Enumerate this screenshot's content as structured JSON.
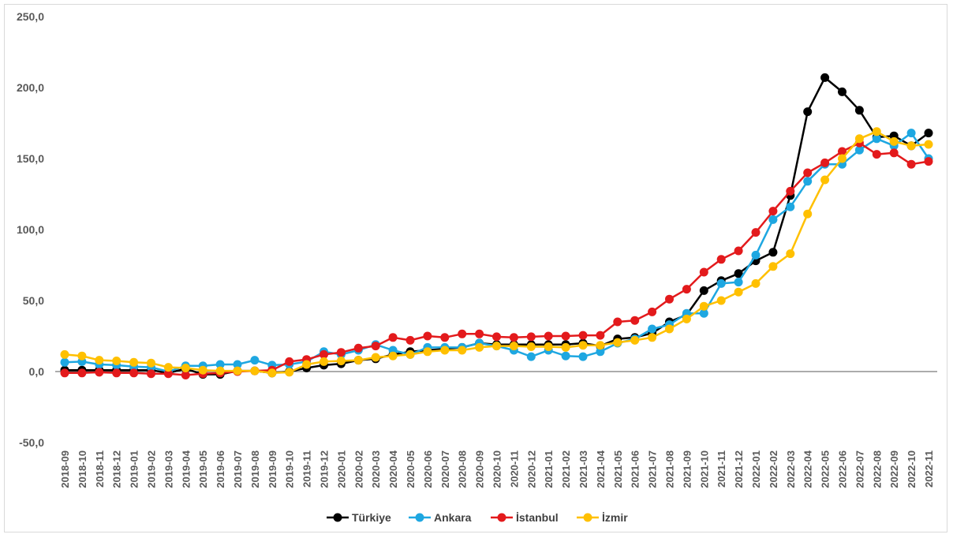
{
  "chart_data": {
    "type": "line",
    "title": "",
    "xlabel": "",
    "ylabel": "",
    "ylim": [
      -50,
      250
    ],
    "yticks": [
      -50,
      0,
      50,
      100,
      150,
      200,
      250
    ],
    "ytick_labels": [
      "-50,0",
      "0,0",
      "50,0",
      "100,0",
      "150,0",
      "200,0",
      "250,0"
    ],
    "grid": false,
    "legend_position": "bottom",
    "categories": [
      "2018-09",
      "2018-10",
      "2018-11",
      "2018-12",
      "2019-01",
      "2019-02",
      "2019-03",
      "2019-04",
      "2019-05",
      "2019-06",
      "2019-07",
      "2019-08",
      "2019-09",
      "2019-10",
      "2019-11",
      "2019-12",
      "2020-01",
      "2020-02",
      "2020-03",
      "2020-04",
      "2020-05",
      "2020-06",
      "2020-07",
      "2020-08",
      "2020-09",
      "2020-10",
      "2020-11",
      "2020-12",
      "2021-01",
      "2021-02",
      "2021-03",
      "2021-04",
      "2021-05",
      "2021-06",
      "2021-07",
      "2021-08",
      "2021-09",
      "2021-10",
      "2021-11",
      "2021-12",
      "2022-01",
      "2022-02",
      "2022-03",
      "2022-04",
      "2022-05",
      "2022-06",
      "2022-07",
      "2022-08",
      "2022-09",
      "2022-10",
      "2022-11"
    ],
    "series": [
      {
        "name": "Türkiye",
        "color": "#000000",
        "values": [
          1.0,
          1.0,
          1.0,
          1.0,
          1.0,
          1.0,
          -1.0,
          2.0,
          -2.0,
          -2.0,
          0.5,
          0.5,
          -1.0,
          0.0,
          2.5,
          4.5,
          5.5,
          8.0,
          9.0,
          12.0,
          14.0,
          15.0,
          16.0,
          17.0,
          20.0,
          19.0,
          19.0,
          19.0,
          19.0,
          19.0,
          20.0,
          18.0,
          23.0,
          24.0,
          27.0,
          35.0,
          40.0,
          57.0,
          64.0,
          69.0,
          78.0,
          84.0,
          124.0,
          183.0,
          207.0,
          197.0,
          184.0,
          165.0,
          166.0,
          159.0,
          168.0
        ]
      },
      {
        "name": "Ankara",
        "color": "#1ea7e1",
        "values": [
          6.5,
          7.0,
          5.0,
          4.5,
          3.5,
          3.0,
          0.0,
          4.0,
          4.0,
          5.0,
          5.0,
          8.0,
          4.5,
          5.0,
          7.0,
          14.0,
          12.0,
          15.0,
          19.0,
          15.0,
          12.0,
          17.0,
          17.0,
          17.0,
          20.0,
          18.0,
          15.0,
          10.5,
          15.0,
          11.0,
          10.5,
          14.0,
          20.0,
          23.0,
          30.0,
          33.0,
          41.0,
          41.0,
          62.0,
          63.0,
          82.0,
          107.0,
          116.0,
          134.0,
          146.0,
          146.0,
          156.0,
          164.0,
          159.0,
          168.0,
          150.0
        ]
      },
      {
        "name": "İstanbul",
        "color": "#e31a1c",
        "values": [
          -1.0,
          -1.0,
          -0.5,
          -1.0,
          -1.0,
          -1.5,
          -1.5,
          -2.5,
          -1.5,
          -1.0,
          0.0,
          0.5,
          1.0,
          7.0,
          8.5,
          12.0,
          13.5,
          16.5,
          18.0,
          24.0,
          22.0,
          25.0,
          24.0,
          26.5,
          26.5,
          24.5,
          24.0,
          24.5,
          25.0,
          25.0,
          25.5,
          25.5,
          35.0,
          36.0,
          42.0,
          51.0,
          58.0,
          70.0,
          79.0,
          85.0,
          98.0,
          113.0,
          127.0,
          140.0,
          147.0,
          155.0,
          161.0,
          153.0,
          154.0,
          146.0,
          148.0
        ]
      },
      {
        "name": "İzmir",
        "color": "#ffc000",
        "values": [
          12.0,
          11.0,
          8.0,
          7.5,
          6.5,
          6.0,
          3.0,
          2.5,
          1.0,
          0.5,
          0.5,
          0.5,
          -1.0,
          -0.5,
          5.0,
          7.0,
          7.5,
          8.0,
          10.0,
          11.0,
          12.0,
          14.0,
          15.0,
          15.0,
          17.0,
          18.0,
          18.0,
          17.5,
          17.5,
          17.0,
          18.5,
          18.5,
          20.5,
          22.0,
          24.0,
          30.0,
          37.0,
          46.0,
          50.0,
          56.0,
          62.0,
          74.0,
          83.0,
          111.0,
          135.0,
          150.0,
          164.0,
          169.0,
          162.0,
          159.0,
          160.0
        ]
      }
    ]
  }
}
